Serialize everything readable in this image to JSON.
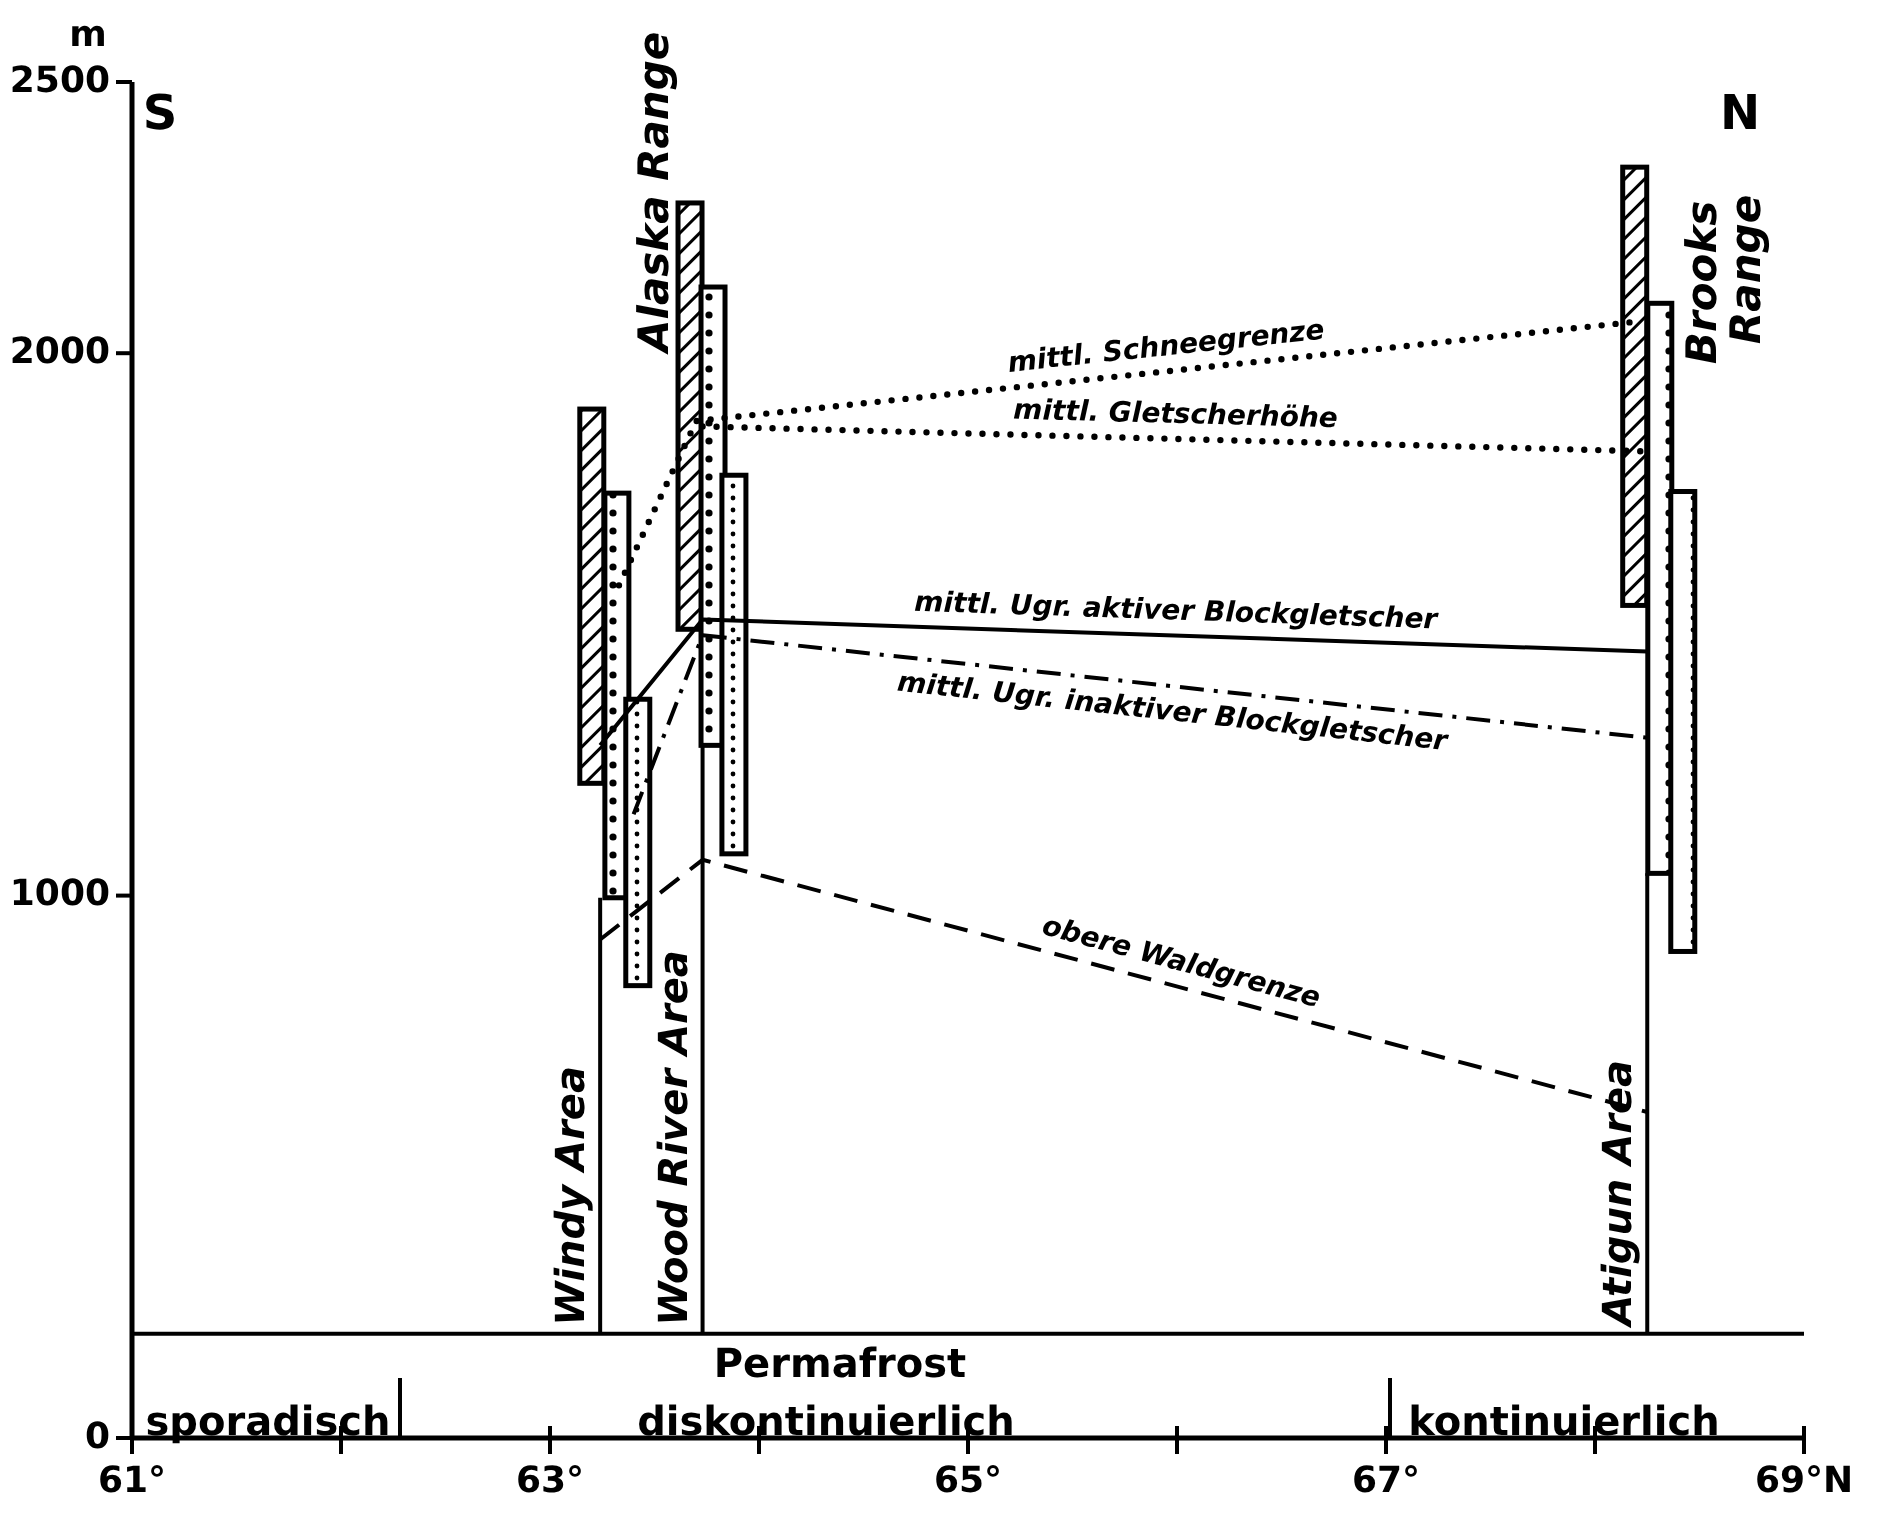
{
  "chart_data": {
    "type": "bar",
    "ylabel": "m",
    "xlim": [
      61,
      69
    ],
    "ylim": [
      0,
      2500
    ],
    "xticks": [
      {
        "value": 61,
        "label": "61°"
      },
      {
        "value": 62,
        "label": null
      },
      {
        "value": 63,
        "label": "63°"
      },
      {
        "value": 64,
        "label": null
      },
      {
        "value": 65,
        "label": "65°"
      },
      {
        "value": 66,
        "label": null
      },
      {
        "value": 67,
        "label": "67°"
      },
      {
        "value": 68,
        "label": null
      },
      {
        "value": 69,
        "label": "69°N"
      }
    ],
    "yticks": [
      0,
      1000,
      2000,
      2500
    ],
    "series": [
      {
        "color": "#000000",
        "x": [
          63.2,
          63.67,
          68.19
        ],
        "base": [
          1207,
          1491,
          1535
        ],
        "values": [
          690,
          786,
          808
        ]
      },
      {
        "color": "#000000",
        "x": [
          63.32,
          63.78,
          68.31
        ],
        "base": [
          996,
          1277,
          1041
        ],
        "values": [
          746,
          845,
          1051
        ]
      },
      {
        "color": "#000000",
        "x": [
          63.42,
          63.88,
          68.42
        ],
        "base": [
          834,
          1077,
          897
        ],
        "values": [
          528,
          698,
          848
        ]
      },
      {
        "type": "line",
        "name": "mittl. Schneegrenze",
        "color": "#000000",
        "line_style": "dotted",
        "x": [
          63.33,
          63.7,
          68.22
        ],
        "values": [
          1572,
          1875,
          2059
        ]
      },
      {
        "type": "line",
        "name": "mittl. Gletscherhöhe",
        "color": "#000000",
        "line_style": "dotted",
        "x": [
          63.73,
          68.25
        ],
        "values": [
          1865,
          1819
        ]
      },
      {
        "type": "line",
        "name": "mittl. Ugr. aktiver Blockgletscher",
        "color": "#000000",
        "line_style": "solid",
        "x": [
          63.24,
          63.73,
          68.25
        ],
        "values": [
          1277,
          1509,
          1450
        ]
      },
      {
        "type": "line",
        "name": "mittl. Ugr. inaktiver Blockgletscher",
        "color": "#000000",
        "line_style": "dashdot",
        "x": [
          63.4,
          63.73,
          68.25
        ],
        "values": [
          1150,
          1480,
          1291
        ]
      },
      {
        "type": "line",
        "name": "obere Waldgrenze",
        "color": "#000000",
        "line_style": "dashed",
        "x": [
          63.24,
          63.73,
          68.25
        ],
        "values": [
          919,
          1066,
          601
        ]
      }
    ],
    "ref_lines": [
      {
        "axis": "y",
        "value": 192
      },
      {
        "axis": "x",
        "value": 63.24,
        "label": "Windy Area"
      },
      {
        "axis": "x",
        "value": 63.73,
        "label": "Wood River Area"
      },
      {
        "axis": "x",
        "value": 68.25,
        "label": "Atigun Area"
      }
    ],
    "annotations": [
      "S",
      "N",
      "Alaska Range",
      "Brooks Range",
      "Permafrost",
      "sporadisch",
      "diskontinuierlich",
      "kontinuierlich"
    ]
  }
}
